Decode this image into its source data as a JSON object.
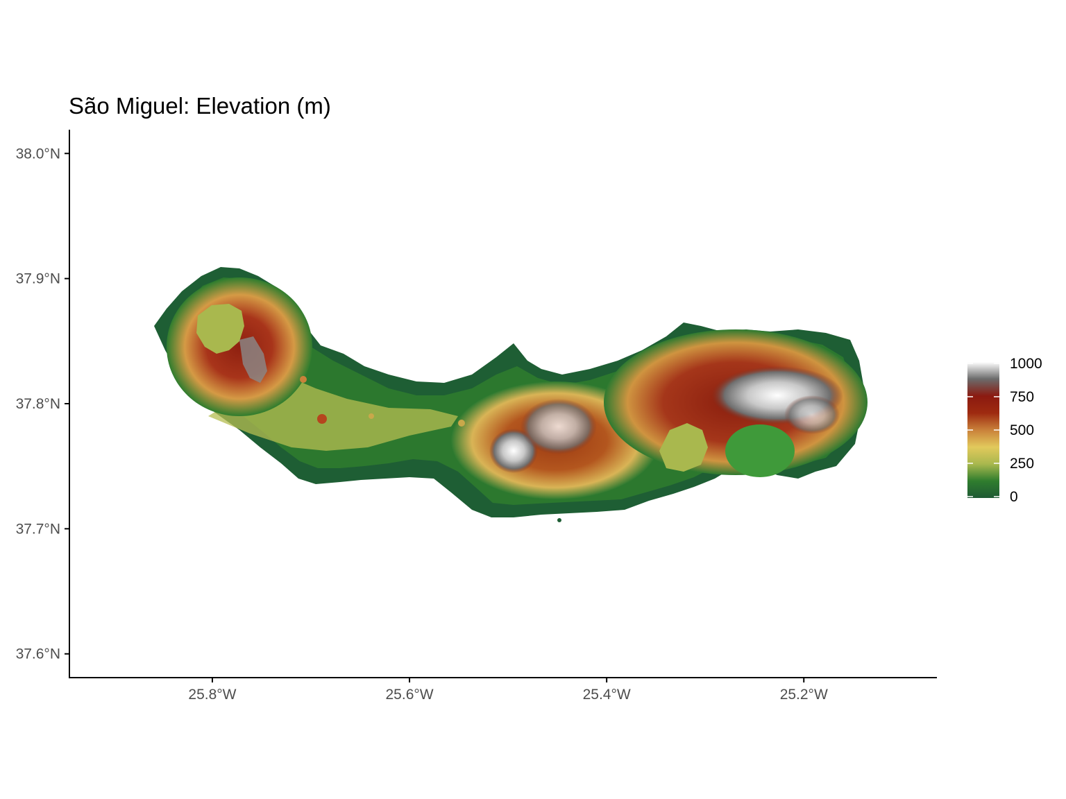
{
  "title": "São Miguel: Elevation (m)",
  "x_axis": {
    "ticks": [
      "25.8°W",
      "25.6°W",
      "25.4°W",
      "25.2°W"
    ],
    "values": [
      -25.8,
      -25.6,
      -25.4,
      -25.2
    ],
    "range": [
      -25.945,
      -25.065
    ]
  },
  "y_axis": {
    "ticks": [
      "38.0°N",
      "37.9°N",
      "37.8°N",
      "37.7°N",
      "37.6°N"
    ],
    "values": [
      38.0,
      37.9,
      37.8,
      37.7,
      37.6
    ],
    "range": [
      37.581,
      38.019
    ]
  },
  "legend": {
    "title": "",
    "labels": [
      "1000",
      "750",
      "500",
      "250",
      "0"
    ],
    "values": [
      1000,
      750,
      500,
      250,
      0
    ],
    "colors": [
      "#1f5a34",
      "#2f7d2e",
      "#a9b84e",
      "#e2c95c",
      "#c9813a",
      "#9e2a10",
      "#8b1a10",
      "#6b6b6b",
      "#ffffff"
    ],
    "placement": "right"
  },
  "colors": {
    "low": "#1f5a34",
    "mid": "#a02a10",
    "high": "#ffffff",
    "axis": "#000000"
  }
}
